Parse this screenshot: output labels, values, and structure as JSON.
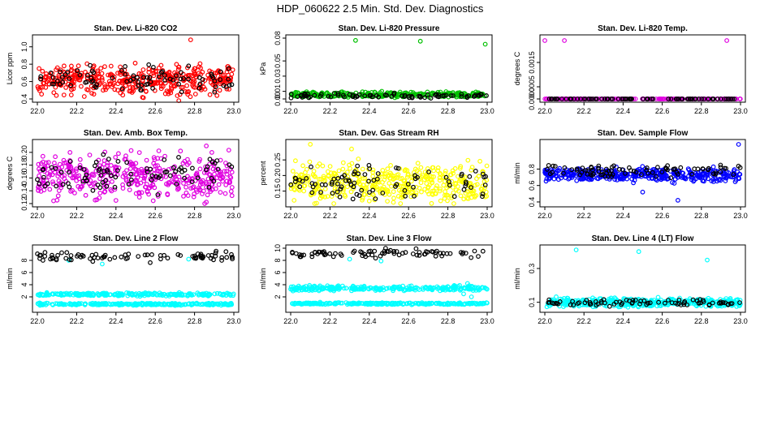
{
  "page": {
    "title": "HDP_060622  2.5 Min. Std. Dev. Diagnostics"
  },
  "chart_data": [
    {
      "type": "scatter",
      "title": "Stan. Dev. Li-820 CO2",
      "xlabel": "",
      "ylabel": "Licor ppm",
      "xlim": [
        22.0,
        23.0
      ],
      "ylim": [
        0.4,
        1.1
      ],
      "xticks": [
        "22.0",
        "22.2",
        "22.4",
        "22.6",
        "22.8",
        "23.0"
      ],
      "yticks": [
        "0.4",
        "0.6",
        "0.8",
        "1.0"
      ],
      "series": [
        {
          "color": "#ff0000",
          "n": 420,
          "base": 0.62,
          "spread": 0.08,
          "outliers": [
            [
              22.78,
              1.08
            ],
            [
              22.72,
              0.38
            ],
            [
              22.8,
              0.75
            ]
          ]
        },
        {
          "color": "#000000",
          "n": 85,
          "base": 0.63,
          "spread": 0.07,
          "outliers": [
            [
              22.77,
              0.78
            ]
          ]
        }
      ]
    },
    {
      "type": "scatter",
      "title": "Stan. Dev. Li-820 Pressure",
      "xlabel": "",
      "ylabel": "kPa",
      "xlim": [
        22.0,
        23.0
      ],
      "ylim": [
        0.0,
        0.08
      ],
      "xticks": [
        "22.0",
        "22.2",
        "22.4",
        "22.6",
        "22.8",
        "23.0"
      ],
      "yticks": [
        "0.00",
        "0.01",
        "0.03",
        "0.05",
        "0.08"
      ],
      "series": [
        {
          "color": "#00c000",
          "n": 300,
          "base": 0.0055,
          "spread": 0.0018,
          "outliers": [
            [
              22.33,
              0.077
            ],
            [
              22.66,
              0.076
            ],
            [
              22.99,
              0.072
            ]
          ]
        },
        {
          "color": "#000000",
          "n": 80,
          "base": 0.004,
          "spread": 0.0015,
          "outliers": []
        }
      ]
    },
    {
      "type": "scatter",
      "title": "Stan. Dev. Li-820 Temp.",
      "xlabel": "",
      "ylabel": "degrees C",
      "xlim": [
        22.0,
        23.0
      ],
      "ylim": [
        0.0,
        0.0025
      ],
      "xticks": [
        "22.0",
        "22.2",
        "22.4",
        "22.6",
        "22.8",
        "23.0"
      ],
      "yticks": [
        "0.0000",
        "0.0005",
        "0.0015"
      ],
      "series": [
        {
          "color": "#e000e0",
          "n": 200,
          "base": 0.0,
          "spread": 0.0,
          "outliers": [
            [
              22.0,
              0.0024
            ],
            [
              22.1,
              0.0024
            ],
            [
              22.93,
              0.0024
            ]
          ]
        },
        {
          "color": "#000000",
          "n": 80,
          "base": 0.0,
          "spread": 0.0,
          "outliers": []
        }
      ]
    },
    {
      "type": "scatter",
      "title": "Stan. Dev. Amb. Box Temp.",
      "xlabel": "",
      "ylabel": "degrees C",
      "xlim": [
        22.0,
        23.0
      ],
      "ylim": [
        0.12,
        0.215
      ],
      "xticks": [
        "22.0",
        "22.2",
        "22.4",
        "22.6",
        "22.8",
        "23.0"
      ],
      "yticks": [
        "0.12",
        "0.14",
        "0.16",
        "0.18",
        "0.20"
      ],
      "series": [
        {
          "color": "#e000e0",
          "n": 420,
          "base": 0.162,
          "spread": 0.017,
          "outliers": [
            [
              22.86,
              0.21
            ],
            [
              22.4,
              0.125
            ]
          ]
        },
        {
          "color": "#000000",
          "n": 85,
          "base": 0.168,
          "spread": 0.013,
          "outliers": []
        }
      ]
    },
    {
      "type": "scatter",
      "title": "Stan. Dev. Gas Stream RH",
      "xlabel": "",
      "ylabel": "percent",
      "xlim": [
        22.0,
        23.0
      ],
      "ylim": [
        0.11,
        0.305
      ],
      "xticks": [
        "22.0",
        "22.2",
        "22.4",
        "22.6",
        "22.8",
        "23.0"
      ],
      "yticks": [
        "0.15",
        "0.20",
        "0.25"
      ],
      "series": [
        {
          "color": "#ffff00",
          "n": 420,
          "base": 0.175,
          "spread": 0.03,
          "outliers": [
            [
              22.1,
              0.3
            ],
            [
              22.31,
              0.285
            ]
          ]
        },
        {
          "color": "#000000",
          "n": 85,
          "base": 0.178,
          "spread": 0.025,
          "outliers": []
        }
      ]
    },
    {
      "type": "scatter",
      "title": "Stan. Dev. Sample Flow",
      "xlabel": "",
      "ylabel": "ml/min",
      "xlim": [
        22.0,
        23.0
      ],
      "ylim": [
        0.38,
        1.12
      ],
      "xticks": [
        "22.0",
        "22.2",
        "22.4",
        "22.6",
        "22.8",
        "23.0"
      ],
      "yticks": [
        "0.4",
        "0.6",
        "0.8"
      ],
      "series": [
        {
          "color": "#0000ff",
          "n": 420,
          "base": 0.73,
          "spread": 0.04,
          "outliers": [
            [
              22.99,
              1.1
            ],
            [
              22.68,
              0.42
            ],
            [
              22.5,
              0.52
            ]
          ]
        },
        {
          "color": "#000000",
          "n": 85,
          "base": 0.78,
          "spread": 0.04,
          "outliers": []
        }
      ]
    },
    {
      "type": "scatter",
      "title": "Stan. Dev. Line 2 Flow",
      "xlabel": "",
      "ylabel": "ml/min",
      "xlim": [
        22.0,
        23.0
      ],
      "ylim": [
        0.0,
        10.0
      ],
      "xticks": [
        "22.0",
        "22.2",
        "22.4",
        "22.6",
        "22.8",
        "23.0"
      ],
      "yticks": [
        "2",
        "4",
        "6",
        "8"
      ],
      "series": [
        {
          "color": "#00ffff",
          "n": 260,
          "base": 2.4,
          "spread": 0.12,
          "outliers": []
        },
        {
          "color": "#00ffff",
          "n": 260,
          "base": 0.8,
          "spread": 0.08,
          "outliers": [
            [
              22.33,
              7.4
            ],
            [
              22.16,
              8.0
            ],
            [
              22.77,
              8.2
            ]
          ]
        },
        {
          "color": "#000000",
          "n": 80,
          "base": 8.6,
          "spread": 0.35,
          "outliers": [
            [
              22.15,
              9.3
            ]
          ]
        }
      ]
    },
    {
      "type": "scatter",
      "title": "Stan. Dev. Line 3 Flow",
      "xlabel": "",
      "ylabel": "ml/min",
      "xlim": [
        22.0,
        23.0
      ],
      "ylim": [
        0.0,
        10.0
      ],
      "xticks": [
        "22.0",
        "22.2",
        "22.4",
        "22.6",
        "22.8",
        "23.0"
      ],
      "yticks": [
        "2",
        "4",
        "6",
        "8",
        "10"
      ],
      "series": [
        {
          "color": "#00ffff",
          "n": 260,
          "base": 3.4,
          "spread": 0.2,
          "outliers": [
            [
              22.9,
              4.2
            ],
            [
              22.92,
              2.0
            ],
            [
              22.88,
              2.5
            ]
          ]
        },
        {
          "color": "#00ffff",
          "n": 260,
          "base": 0.9,
          "spread": 0.08,
          "outliers": [
            [
              22.3,
              8.2
            ],
            [
              22.46,
              7.9
            ]
          ]
        },
        {
          "color": "#000000",
          "n": 80,
          "base": 9.1,
          "spread": 0.35,
          "outliers": []
        }
      ]
    },
    {
      "type": "scatter",
      "title": "Stan. Dev. Line 4 (LT) Flow",
      "xlabel": "",
      "ylabel": "ml/min",
      "xlim": [
        22.0,
        23.0
      ],
      "ylim": [
        0.06,
        0.42
      ],
      "xticks": [
        "22.0",
        "22.2",
        "22.4",
        "22.6",
        "22.8",
        "23.0"
      ],
      "yticks": [
        "0.1",
        "0.3"
      ],
      "series": [
        {
          "color": "#00ffff",
          "n": 420,
          "base": 0.1,
          "spread": 0.012,
          "outliers": [
            [
              22.16,
              0.41
            ],
            [
              22.48,
              0.4
            ],
            [
              22.83,
              0.35
            ]
          ]
        },
        {
          "color": "#000000",
          "n": 80,
          "base": 0.1,
          "spread": 0.01,
          "outliers": []
        }
      ]
    }
  ]
}
